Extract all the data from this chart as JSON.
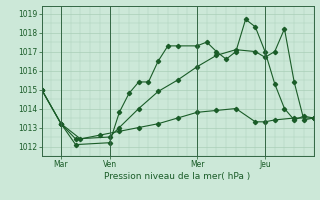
{
  "xlabel": "Pression niveau de la mer( hPa )",
  "bg_color": "#cce8d8",
  "line_color": "#1a5c28",
  "grid_color": "#aacfb8",
  "vline_color": "#336644",
  "ylim": [
    1011.5,
    1019.4
  ],
  "xlim": [
    0,
    28
  ],
  "xtick_positions": [
    2,
    7,
    16,
    23
  ],
  "xtick_labels": [
    "Mar",
    "Ven",
    "Mer",
    "Jeu"
  ],
  "ytick_positions": [
    1012,
    1013,
    1014,
    1015,
    1016,
    1017,
    1018,
    1019
  ],
  "vlines": [
    2,
    7,
    16,
    23
  ],
  "series1_x": [
    0,
    2,
    3.5,
    7,
    8,
    9,
    10,
    11,
    12,
    13,
    14,
    16,
    17,
    18,
    19,
    20,
    21,
    22,
    23,
    24,
    25,
    26,
    27,
    28
  ],
  "series1_y": [
    1015.0,
    1013.2,
    1012.1,
    1012.2,
    1013.8,
    1014.8,
    1015.4,
    1015.4,
    1016.5,
    1017.3,
    1017.3,
    1017.3,
    1017.5,
    1017.0,
    1016.6,
    1017.0,
    1018.7,
    1018.3,
    1017.0,
    1015.3,
    1014.0,
    1013.4,
    1013.6,
    1013.5
  ],
  "series2_x": [
    0,
    2,
    3.5,
    7,
    8,
    10,
    12,
    14,
    16,
    18,
    20,
    22,
    23,
    24,
    25,
    26,
    27,
    28
  ],
  "series2_y": [
    1015.0,
    1013.2,
    1012.4,
    1012.5,
    1013.0,
    1014.0,
    1014.9,
    1015.5,
    1016.2,
    1016.8,
    1017.1,
    1017.0,
    1016.7,
    1017.0,
    1018.2,
    1015.4,
    1013.4,
    1013.5
  ],
  "series3_x": [
    0,
    2,
    4,
    6,
    8,
    10,
    12,
    14,
    16,
    18,
    20,
    22,
    23,
    24,
    26,
    28
  ],
  "series3_y": [
    1015.0,
    1013.2,
    1012.4,
    1012.6,
    1012.8,
    1013.0,
    1013.2,
    1013.5,
    1013.8,
    1013.9,
    1014.0,
    1013.3,
    1013.3,
    1013.4,
    1013.5,
    1013.5
  ]
}
